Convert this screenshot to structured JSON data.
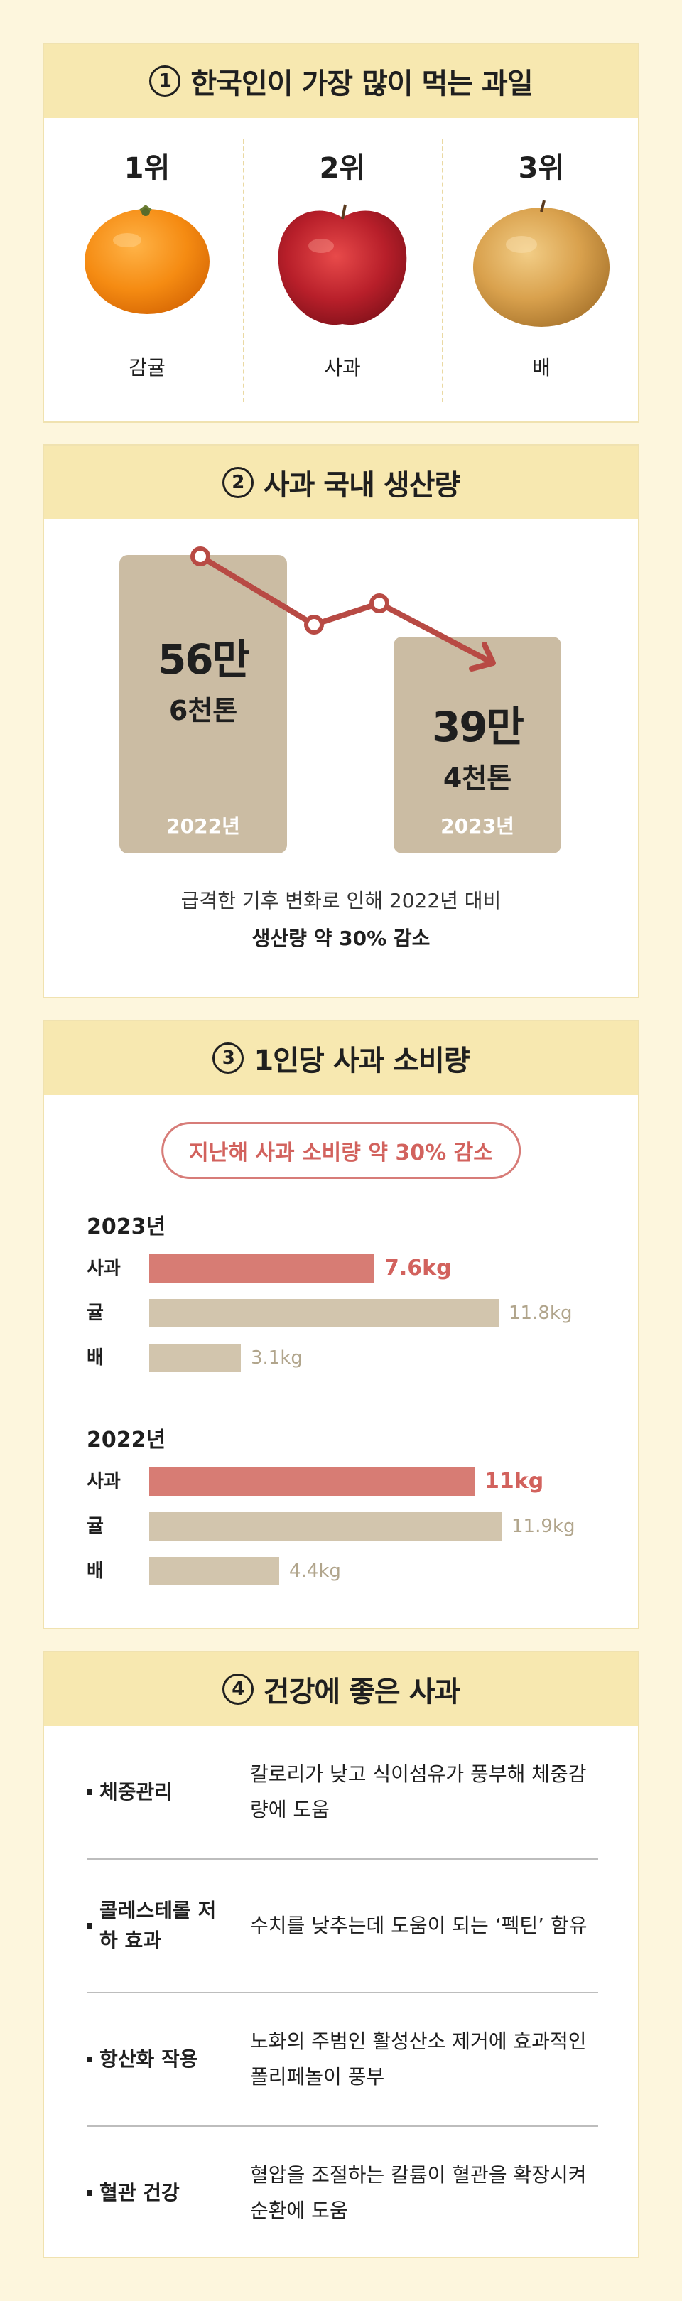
{
  "section1": {
    "number": "1",
    "title": "한국인이 가장 많이 먹는 과일",
    "fruits": [
      {
        "rank": "1위",
        "name": "감귤",
        "icon": "tangerine-icon"
      },
      {
        "rank": "2위",
        "name": "사과",
        "icon": "apple-icon"
      },
      {
        "rank": "3위",
        "name": "배",
        "icon": "pear-icon"
      }
    ]
  },
  "section2": {
    "number": "2",
    "title": "사과 국내 생산량",
    "items": [
      {
        "big": "56만",
        "small": "6천톤",
        "year": "2022년"
      },
      {
        "big": "39만",
        "small": "4천톤",
        "year": "2023년"
      }
    ],
    "caption": "급격한 기후 변화로 인해 2022년 대비",
    "caption_bold": "생산량 약 30% 감소",
    "colors": {
      "box": "#cbbca3",
      "arrow": "#b84a44"
    }
  },
  "section3": {
    "number": "3",
    "title": "1인당 사과 소비량",
    "badge": "지난해 사과 소비량 약 30% 감소",
    "max_value": 12.0,
    "groups": [
      {
        "year": "2023년",
        "rows": [
          {
            "label": "사과",
            "value": 7.6,
            "value_text": "7.6kg",
            "highlight": true
          },
          {
            "label": "귤",
            "value": 11.8,
            "value_text": "11.8kg",
            "highlight": false
          },
          {
            "label": "배",
            "value": 3.1,
            "value_text": "3.1kg",
            "highlight": false
          }
        ]
      },
      {
        "year": "2022년",
        "rows": [
          {
            "label": "사과",
            "value": 11,
            "value_text": "11kg",
            "highlight": true
          },
          {
            "label": "귤",
            "value": 11.9,
            "value_text": "11.9kg",
            "highlight": false
          },
          {
            "label": "배",
            "value": 4.4,
            "value_text": "4.4kg",
            "highlight": false
          }
        ]
      }
    ],
    "colors": {
      "highlight": "#d77c74",
      "normal": "#d2c5ad"
    }
  },
  "section4": {
    "number": "4",
    "title": "건강에 좋은 사과",
    "benefits": [
      {
        "title": "체중관리",
        "desc": "칼로리가 낮고 식이섬유가 풍부해 체중감량에 도움"
      },
      {
        "title": "콜레스테롤 저하 효과",
        "desc": "수치를 낮추는데 도움이 되는 ‘펙틴’ 함유"
      },
      {
        "title": "항산화 작용",
        "desc": "노화의 주범인 활성산소 제거에 효과적인 폴리페놀이 풍부"
      },
      {
        "title": "혈관 건강",
        "desc": "혈압을 조절하는 칼륨이 혈관을 확장시켜 순환에 도움"
      }
    ]
  },
  "colors": {
    "page_bg": "#fdf6dd",
    "header_bg": "#f7e8b0",
    "accent": "#d2625d"
  }
}
